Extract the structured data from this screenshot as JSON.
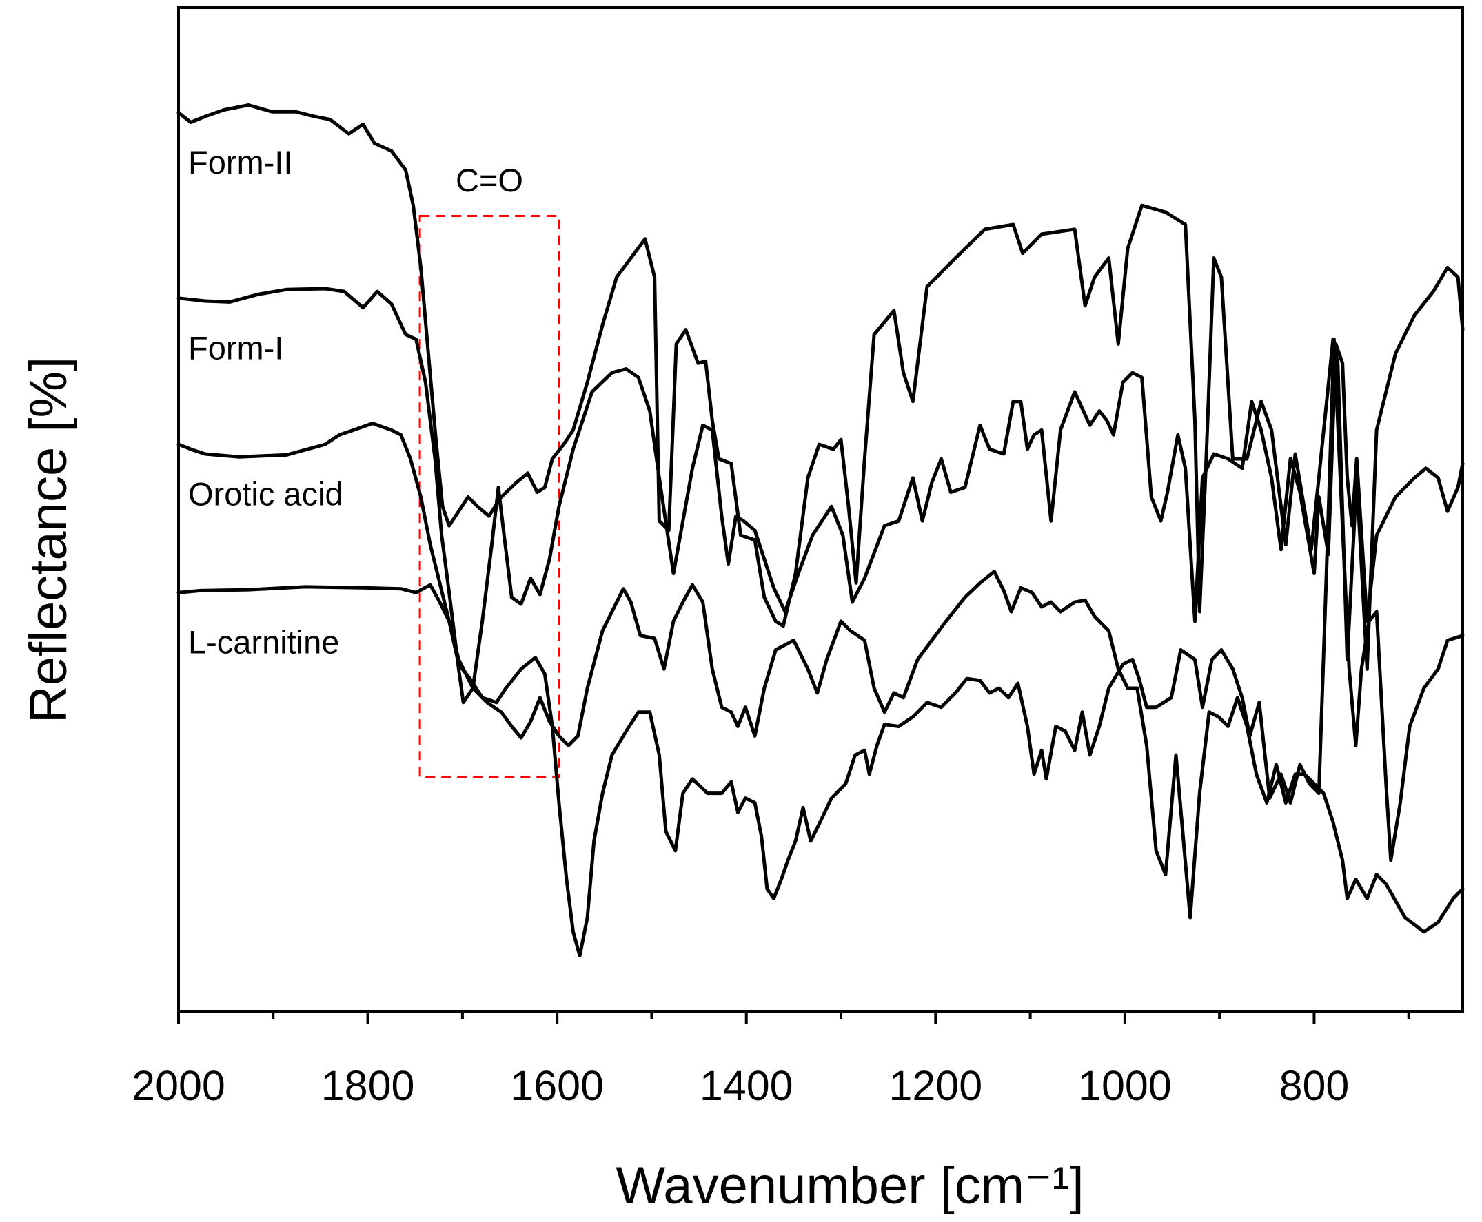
{
  "chart_data": {
    "type": "line",
    "x_label": "Wavenumber [cm⁻¹]",
    "y_label": "Reflectance [%]",
    "xlim": [
      2000,
      643
    ],
    "ylim": [
      0,
      105
    ],
    "xticks": [
      2000,
      1800,
      1600,
      1400,
      1200,
      1000,
      800
    ],
    "xminorticks": [
      1900,
      1700,
      1500,
      1300,
      1100,
      900,
      700
    ],
    "highlight": {
      "label": "C=O",
      "color": "#ff0000",
      "xlim": [
        1745,
        1598
      ],
      "ylim": [
        24.5,
        83.2
      ]
    },
    "series": [
      {
        "name": "Form-II",
        "color": "#000000",
        "x": [
          2000,
          1987,
          1972,
          1952,
          1926,
          1901,
          1876,
          1856,
          1840,
          1820,
          1805,
          1793,
          1775,
          1760,
          1752,
          1744,
          1736,
          1728,
          1721,
          1714,
          1704,
          1694,
          1684,
          1672,
          1659,
          1643,
          1631,
          1621,
          1613,
          1605,
          1593,
          1583,
          1568,
          1552,
          1537,
          1522,
          1507,
          1497,
          1492,
          1482,
          1474,
          1464,
          1451,
          1443,
          1436,
          1429,
          1416,
          1406,
          1391,
          1381,
          1369,
          1361,
          1348,
          1335,
          1323,
          1308,
          1300,
          1292,
          1284,
          1275,
          1265,
          1244,
          1234,
          1224,
          1209,
          1179,
          1148,
          1118,
          1108,
          1088,
          1053,
          1042,
          1032,
          1017,
          1007,
          997,
          982,
          957,
          936,
          926,
          921,
          914,
          906,
          898,
          886,
          871,
          856,
          845,
          830,
          820,
          803,
          795,
          780,
          775,
          765,
          755,
          744,
          734,
          714,
          694,
          674,
          659,
          648,
          643
        ],
        "values": [
          94.0,
          93.0,
          93.6,
          94.3,
          94.8,
          94.1,
          94.1,
          93.6,
          93.3,
          91.8,
          92.8,
          90.8,
          90.0,
          88.0,
          84.3,
          77.8,
          68.8,
          59.8,
          52.8,
          50.8,
          52.3,
          53.8,
          52.8,
          51.8,
          53.8,
          55.3,
          56.3,
          54.3,
          54.8,
          57.8,
          59.3,
          60.8,
          65.8,
          71.8,
          76.8,
          78.8,
          80.8,
          76.8,
          51.3,
          50.3,
          69.8,
          71.3,
          67.8,
          68.0,
          61.8,
          57.8,
          57.3,
          49.8,
          49.3,
          43.3,
          40.8,
          40.3,
          45.8,
          55.8,
          59.3,
          58.8,
          59.8,
          52.8,
          44.8,
          57.8,
          70.8,
          73.3,
          66.8,
          63.8,
          75.8,
          78.8,
          81.8,
          82.3,
          79.3,
          81.3,
          81.8,
          73.8,
          76.8,
          78.8,
          69.8,
          79.8,
          84.3,
          83.6,
          82.3,
          61.8,
          41.8,
          57.8,
          78.8,
          76.8,
          57.8,
          57.8,
          63.8,
          60.8,
          48.8,
          58.3,
          48.3,
          55.8,
          70.3,
          67.8,
          36.8,
          55.8,
          35.8,
          60.8,
          68.8,
          72.8,
          75.3,
          77.8,
          76.8,
          71.3
        ]
      },
      {
        "name": "Form-I",
        "color": "#000000",
        "x": [
          2000,
          1972,
          1946,
          1916,
          1886,
          1845,
          1825,
          1805,
          1790,
          1775,
          1760,
          1749,
          1739,
          1729,
          1722,
          1714,
          1704,
          1699,
          1689,
          1679,
          1669,
          1662,
          1656,
          1648,
          1638,
          1628,
          1618,
          1608,
          1598,
          1583,
          1563,
          1542,
          1527,
          1514,
          1502,
          1492,
          1477,
          1457,
          1446,
          1436,
          1426,
          1419,
          1411,
          1403,
          1391,
          1371,
          1359,
          1345,
          1330,
          1310,
          1298,
          1288,
          1275,
          1254,
          1239,
          1224,
          1214,
          1204,
          1194,
          1184,
          1169,
          1153,
          1143,
          1128,
          1118,
          1110,
          1103,
          1096,
          1088,
          1078,
          1068,
          1053,
          1037,
          1027,
          1019,
          1012,
          1002,
          992,
          982,
          972,
          962,
          955,
          944,
          936,
          926,
          918,
          906,
          891,
          876,
          866,
          856,
          845,
          835,
          825,
          815,
          800,
          795,
          785,
          777,
          770,
          765,
          760,
          755,
          744,
          734,
          714,
          694,
          682,
          669,
          659,
          648,
          643
        ],
        "values": [
          74.6,
          74.3,
          74.2,
          75.0,
          75.5,
          75.6,
          75.3,
          73.6,
          75.3,
          74.0,
          70.8,
          70.3,
          65.8,
          57.8,
          49.8,
          43.8,
          35.8,
          32.3,
          33.8,
          40.8,
          48.8,
          54.8,
          49.8,
          43.3,
          42.6,
          45.3,
          43.6,
          47.3,
          52.8,
          58.8,
          64.8,
          66.8,
          67.2,
          66.3,
          62.8,
          55.8,
          45.8,
          56.8,
          61.3,
          60.8,
          51.8,
          46.8,
          51.8,
          51.3,
          50.3,
          44.3,
          41.8,
          45.8,
          49.8,
          52.8,
          49.8,
          42.8,
          45.3,
          50.8,
          51.3,
          55.8,
          51.3,
          55.3,
          57.8,
          54.3,
          54.8,
          61.3,
          58.8,
          58.3,
          63.8,
          63.8,
          58.8,
          60.3,
          60.8,
          51.3,
          60.8,
          64.8,
          61.3,
          62.8,
          61.8,
          60.3,
          65.8,
          66.8,
          66.3,
          53.8,
          51.3,
          54.3,
          60.3,
          56.8,
          40.8,
          55.8,
          58.3,
          57.8,
          56.8,
          63.8,
          60.8,
          55.8,
          48.3,
          57.8,
          54.3,
          45.8,
          53.8,
          47.8,
          69.8,
          67.8,
          55.8,
          50.8,
          57.8,
          40.8,
          49.8,
          53.8,
          55.8,
          56.8,
          55.8,
          52.3,
          54.8,
          57.3
        ]
      },
      {
        "name": "Orotic acid",
        "color": "#000000",
        "x": [
          2000,
          1987,
          1972,
          1936,
          1886,
          1845,
          1830,
          1815,
          1795,
          1775,
          1765,
          1755,
          1744,
          1734,
          1724,
          1714,
          1704,
          1689,
          1674,
          1659,
          1648,
          1638,
          1628,
          1618,
          1608,
          1598,
          1588,
          1578,
          1568,
          1552,
          1542,
          1530,
          1522,
          1512,
          1497,
          1487,
          1477,
          1467,
          1457,
          1446,
          1436,
          1426,
          1416,
          1409,
          1401,
          1391,
          1381,
          1369,
          1350,
          1335,
          1325,
          1315,
          1300,
          1290,
          1275,
          1265,
          1254,
          1244,
          1234,
          1219,
          1204,
          1189,
          1169,
          1153,
          1138,
          1128,
          1120,
          1110,
          1098,
          1088,
          1078,
          1068,
          1053,
          1042,
          1032,
          1017,
          1007,
          997,
          987,
          977,
          967,
          957,
          946,
          938,
          931,
          921,
          911,
          901,
          891,
          881,
          871,
          861,
          850,
          840,
          830,
          820,
          810,
          800,
          790,
          780,
          770,
          765,
          756,
          744,
          734,
          724,
          704,
          684,
          669,
          653,
          643
        ],
        "values": [
          59.3,
          58.8,
          58.3,
          58.0,
          58.2,
          59.3,
          60.3,
          60.8,
          61.5,
          60.8,
          60.3,
          57.8,
          53.8,
          48.8,
          44.8,
          40.8,
          36.8,
          33.8,
          32.3,
          31.3,
          29.8,
          28.6,
          30.3,
          32.8,
          30.3,
          28.8,
          27.8,
          28.8,
          33.8,
          39.8,
          41.8,
          44.2,
          42.8,
          39.3,
          39.0,
          35.8,
          40.8,
          42.8,
          44.6,
          42.8,
          35.8,
          31.8,
          31.3,
          29.8,
          31.8,
          28.8,
          33.8,
          37.8,
          38.8,
          35.8,
          33.3,
          36.8,
          40.8,
          39.8,
          38.8,
          33.8,
          31.3,
          33.3,
          32.8,
          36.8,
          38.8,
          40.8,
          43.3,
          44.8,
          46.0,
          44.0,
          41.8,
          44.3,
          43.8,
          42.3,
          42.8,
          41.8,
          42.8,
          43.0,
          41.3,
          39.8,
          35.8,
          33.8,
          33.8,
          27.8,
          16.8,
          14.3,
          26.8,
          17.8,
          9.8,
          22.8,
          31.3,
          30.8,
          29.8,
          32.8,
          29.8,
          24.8,
          21.8,
          25.8,
          21.8,
          24.8,
          24.8,
          23.8,
          22.8,
          19.8,
          15.8,
          11.8,
          13.8,
          11.8,
          14.3,
          13.3,
          9.8,
          8.3,
          9.3,
          11.8,
          12.8
        ]
      },
      {
        "name": "L-carnitine",
        "color": "#000000",
        "x": [
          2000,
          1977,
          1926,
          1866,
          1805,
          1765,
          1749,
          1734,
          1724,
          1714,
          1704,
          1692,
          1679,
          1664,
          1654,
          1638,
          1623,
          1613,
          1605,
          1598,
          1590,
          1583,
          1576,
          1568,
          1561,
          1552,
          1542,
          1527,
          1514,
          1502,
          1492,
          1485,
          1475,
          1467,
          1457,
          1441,
          1426,
          1416,
          1409,
          1401,
          1391,
          1384,
          1378,
          1371,
          1363,
          1356,
          1348,
          1340,
          1332,
          1322,
          1310,
          1295,
          1285,
          1275,
          1270,
          1262,
          1254,
          1239,
          1224,
          1209,
          1194,
          1179,
          1167,
          1153,
          1143,
          1133,
          1123,
          1113,
          1103,
          1096,
          1088,
          1083,
          1073,
          1063,
          1053,
          1045,
          1037,
          1027,
          1017,
          1002,
          992,
          985,
          977,
          967,
          951,
          941,
          926,
          918,
          908,
          898,
          886,
          876,
          868,
          858,
          847,
          835,
          825,
          815,
          805,
          795,
          787,
          779,
          770,
          763,
          756,
          750,
          742,
          734,
          724,
          719,
          709,
          699,
          684,
          669,
          659,
          643
        ],
        "values": [
          43.8,
          44.0,
          44.1,
          44.4,
          44.3,
          44.2,
          43.8,
          44.6,
          42.8,
          40.8,
          36.3,
          34.8,
          32.8,
          32.3,
          33.8,
          35.8,
          37.0,
          35.3,
          29.8,
          21.8,
          13.8,
          8.3,
          5.8,
          9.8,
          17.8,
          22.8,
          26.8,
          29.3,
          31.3,
          31.3,
          26.8,
          18.8,
          16.8,
          22.8,
          24.3,
          22.8,
          22.8,
          24.0,
          20.8,
          22.3,
          21.8,
          18.3,
          12.8,
          11.8,
          13.8,
          15.8,
          17.8,
          21.3,
          17.8,
          19.8,
          22.3,
          23.8,
          26.8,
          27.3,
          24.8,
          27.8,
          30.0,
          29.8,
          30.8,
          32.3,
          31.8,
          33.3,
          34.8,
          34.6,
          33.3,
          33.8,
          32.8,
          34.3,
          29.8,
          24.8,
          27.3,
          24.3,
          29.8,
          29.3,
          27.3,
          31.3,
          26.8,
          29.8,
          33.8,
          36.3,
          36.8,
          34.8,
          31.8,
          31.8,
          32.8,
          37.8,
          36.8,
          31.8,
          36.8,
          37.8,
          35.8,
          32.8,
          28.8,
          32.3,
          22.3,
          24.8,
          21.8,
          25.8,
          23.8,
          22.8,
          45.8,
          70.3,
          50.8,
          35.8,
          27.8,
          35.8,
          40.8,
          41.8,
          23.8,
          15.8,
          21.8,
          29.8,
          33.8,
          35.8,
          38.8,
          39.3
        ]
      }
    ]
  }
}
